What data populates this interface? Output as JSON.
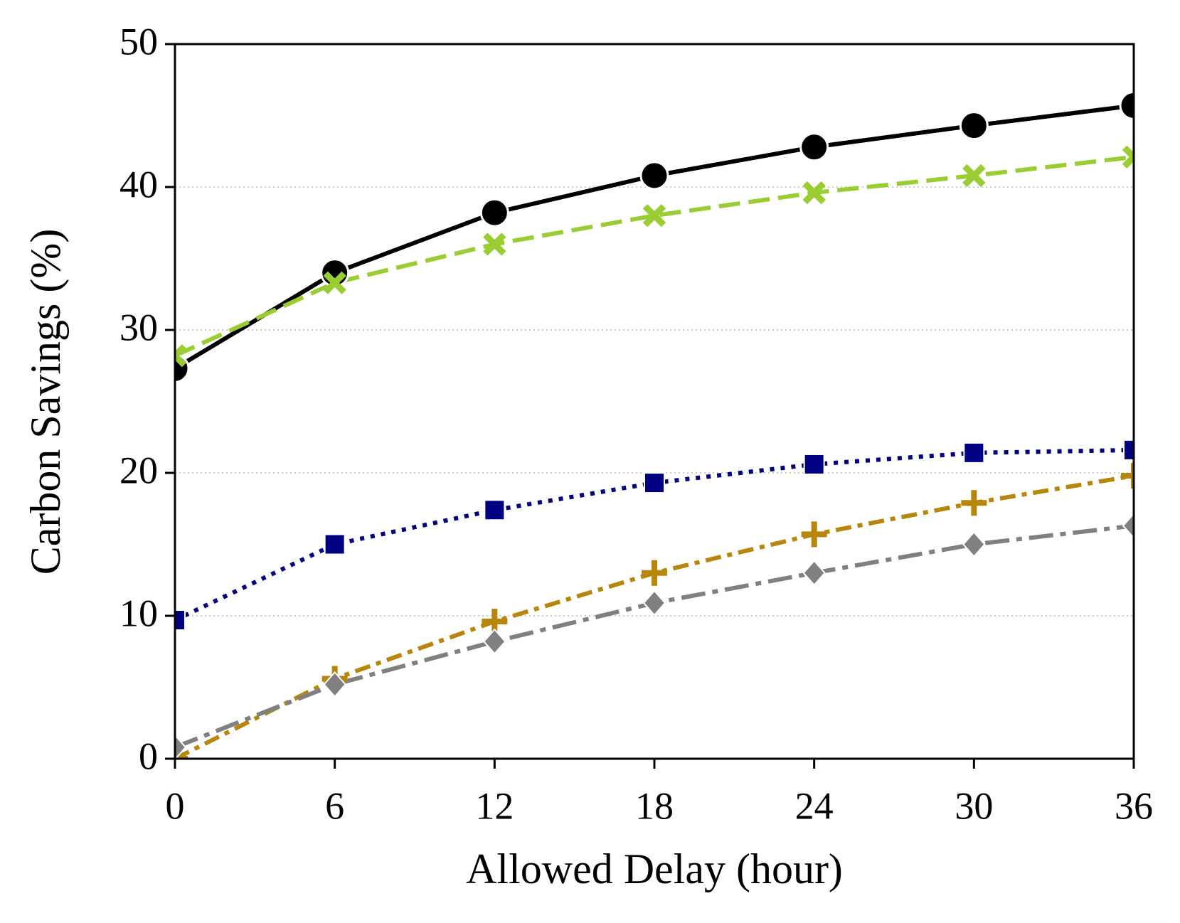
{
  "chart_data": {
    "type": "line",
    "x_label": "Allowed Delay (hour)",
    "y_label": "Carbon Savings (%)",
    "x": [
      0,
      6,
      12,
      18,
      24,
      30,
      36
    ],
    "xlim": [
      0,
      36
    ],
    "xticks": [
      0,
      6,
      12,
      18,
      24,
      30,
      36
    ],
    "ylim": [
      0,
      50
    ],
    "yticks": [
      0,
      10,
      20,
      30,
      40,
      50
    ],
    "grid": true,
    "series": [
      {
        "color": "#000000",
        "marker": "circle",
        "linestyle": "solid",
        "values": [
          27.3,
          34.0,
          38.2,
          40.8,
          42.8,
          44.3,
          45.7
        ]
      },
      {
        "color": "#9acd32",
        "marker": "x",
        "linestyle": "dashed",
        "values": [
          28.2,
          33.3,
          36.0,
          38.0,
          39.6,
          40.8,
          42.1
        ]
      },
      {
        "color": "#000080",
        "marker": "square",
        "linestyle": "dotted",
        "values": [
          9.7,
          15.0,
          17.4,
          19.3,
          20.6,
          21.4,
          21.6
        ]
      },
      {
        "color": "#b8860b",
        "marker": "plus",
        "linestyle": "dashdot",
        "values": [
          0.0,
          5.6,
          9.6,
          13.0,
          15.7,
          17.9,
          19.8
        ]
      },
      {
        "color": "#808080",
        "marker": "diamond",
        "linestyle": "longdashdot",
        "values": [
          0.8,
          5.2,
          8.2,
          10.9,
          13.0,
          15.0,
          16.3
        ]
      }
    ]
  }
}
